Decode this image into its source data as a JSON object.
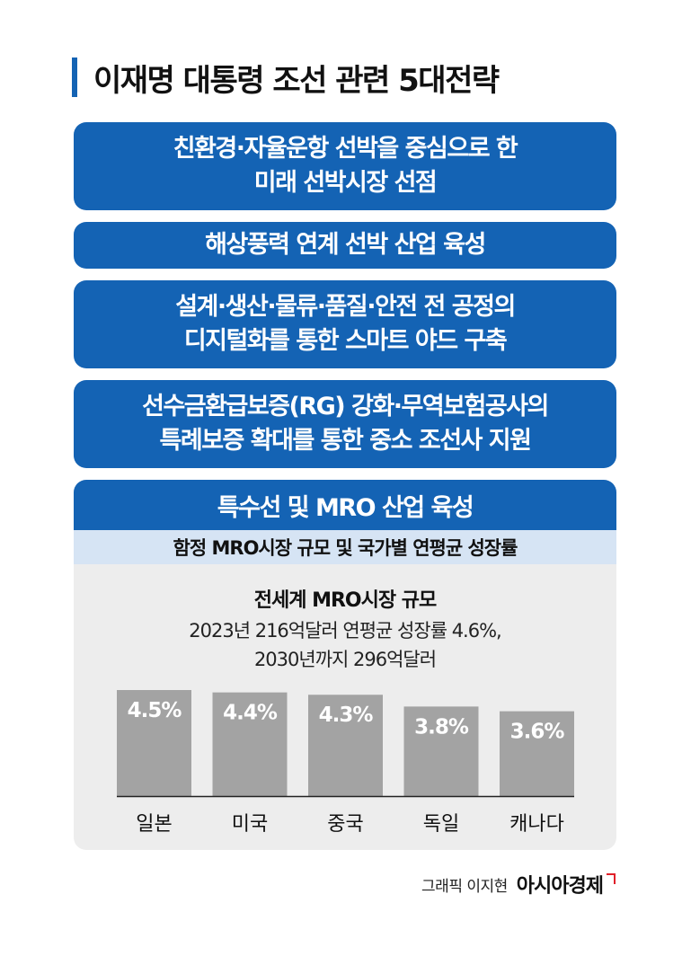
{
  "title": "이재명 대통령 조선 관련 5대전략",
  "strategies": [
    {
      "line1": "친환경·자율운항 선박을 중심으로 한",
      "line2": "미래 선박시장 선점"
    },
    {
      "line1": "해상풍력 연계 선박 산업 육성",
      "line2": ""
    },
    {
      "line1": "설계·생산·물류·품질·안전 전 공정의",
      "line2": "디지털화를 통한 스마트 야드 구축"
    },
    {
      "line1": "선수금환급보증(RG) 강화·무역보험공사의",
      "line2": "특례보증 확대를 통한 중소 조선사 지원"
    }
  ],
  "panel": {
    "heading": "특수선 및 MRO 산업 육성",
    "subheading": "함정 MRO시장 규모 및 국가별 연평균 성장률",
    "chart_title": "전세계 MRO시장 규모",
    "note_line1": "2023년 216억달러 연평균 성장률 4.6%,",
    "note_line2": "2030년까지 296억달러"
  },
  "chart_data": {
    "type": "bar",
    "title": "",
    "categories": [
      "일본",
      "미국",
      "중국",
      "독일",
      "캐나다"
    ],
    "values": [
      4.5,
      4.4,
      4.3,
      3.8,
      3.6
    ],
    "value_labels": [
      "4.5%",
      "4.4%",
      "4.3%",
      "3.8%",
      "3.6%"
    ],
    "unit": "%",
    "xlabel": "",
    "ylabel": "",
    "ylim": [
      0,
      4.5
    ],
    "grid": false,
    "bar_color": "#a3a3a3",
    "label_color": "#ffffff"
  },
  "credit": {
    "text": "그래픽 이지현",
    "brand": "아시아경제"
  },
  "colors": {
    "accent": "#1463b4",
    "subheading_bg": "#d6e4f4",
    "panel_bg": "#ededed"
  }
}
